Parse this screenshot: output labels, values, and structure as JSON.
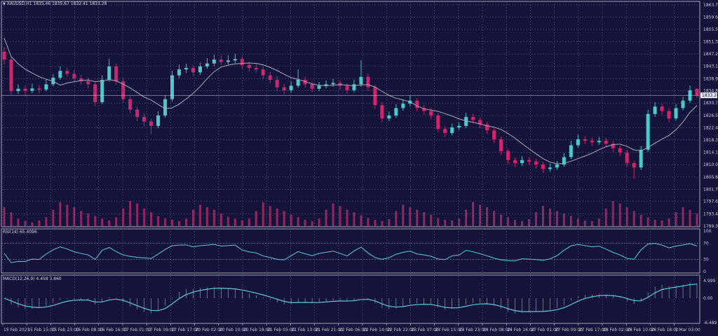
{
  "header": {
    "symbol": "XAUUSD,H1",
    "values": "1835.46 1835.67 1832.41 1833.28"
  },
  "rsi_panel": {
    "label": "RSI(14) 65.4096",
    "axis": [
      "100",
      "70",
      "30",
      "0"
    ]
  },
  "macd_panel": {
    "label": "MACD(12,26,9) 4.458 3.860",
    "axis": [
      "4.999",
      "0.00",
      "-6.489"
    ]
  },
  "colors": {
    "background": "#14143a",
    "bull": "#4ec8cc",
    "bear": "#d0246e",
    "ma": "#a8a8b8",
    "indicator": "#5fc8d8",
    "volume": "#b02a6a",
    "grid": "#4a4a78"
  },
  "chart_data": {
    "type": "candlestick",
    "title": "XAUUSD,H1",
    "current_price": "1833.28",
    "ylim": [
      1789.3,
      1863.7
    ],
    "y_ticks": [
      "1863.70",
      "1859.60",
      "1855.50",
      "1851.30",
      "1847.20",
      "1843.10",
      "1838.90",
      "1834.80",
      "1830.70",
      "1826.50",
      "1822.40",
      "1818.30",
      "1814.10",
      "1810.00",
      "1805.80",
      "1801.70",
      "1797.60",
      "1793.40",
      "1789.30"
    ],
    "x_ticks": [
      "15 Feb 2023",
      "15 Feb 15:00",
      "15 Feb 23:00",
      "16 Feb 08:00",
      "16 Feb 16:00",
      "17 Feb 01:00",
      "17 Feb 09:00",
      "17 Feb 17:00",
      "20 Feb 02:00",
      "20 Feb 10:00",
      "20 Feb 18:00",
      "21 Feb 05:00",
      "21 Feb 13:00",
      "21 Feb 21:00",
      "22 Feb 06:00",
      "22 Feb 14:00",
      "22 Feb 22:00",
      "23 Feb 07:00",
      "23 Feb 15:00",
      "23 Feb 23:00",
      "24 Feb 08:00",
      "24 Feb 16:00",
      "27 Feb 01:00",
      "27 Feb 09:00",
      "27 Feb 17:00",
      "28 Feb 02:00",
      "28 Feb 10:00",
      "28 Feb 18:00",
      "1 Mar 03:00"
    ],
    "candles_ohlc": [
      [
        1848.0,
        1849.5,
        1843.8,
        1845.3
      ],
      [
        1845.3,
        1846.0,
        1833.5,
        1834.7
      ],
      [
        1834.7,
        1837.0,
        1833.8,
        1835.5
      ],
      [
        1835.5,
        1836.5,
        1833.2,
        1834.8
      ],
      [
        1834.8,
        1837.2,
        1834.0,
        1835.6
      ],
      [
        1835.6,
        1836.8,
        1833.9,
        1835.2
      ],
      [
        1835.2,
        1838.5,
        1834.6,
        1837.0
      ],
      [
        1837.0,
        1840.4,
        1836.3,
        1839.2
      ],
      [
        1839.2,
        1843.0,
        1838.5,
        1841.5
      ],
      [
        1841.5,
        1842.6,
        1839.6,
        1840.5
      ],
      [
        1840.5,
        1841.8,
        1837.9,
        1839.0
      ],
      [
        1839.0,
        1840.2,
        1836.8,
        1838.0
      ],
      [
        1838.0,
        1839.3,
        1835.6,
        1837.0
      ],
      [
        1837.0,
        1837.8,
        1829.6,
        1831.0
      ],
      [
        1831.0,
        1840.0,
        1830.4,
        1838.5
      ],
      [
        1838.5,
        1845.6,
        1837.9,
        1843.0
      ],
      [
        1843.0,
        1844.0,
        1836.9,
        1838.0
      ],
      [
        1838.0,
        1839.1,
        1830.8,
        1832.0
      ],
      [
        1832.0,
        1833.0,
        1827.3,
        1828.5
      ],
      [
        1828.5,
        1829.6,
        1824.6,
        1826.0
      ],
      [
        1826.0,
        1827.2,
        1822.8,
        1824.5
      ],
      [
        1824.5,
        1825.4,
        1820.2,
        1823.0
      ],
      [
        1823.0,
        1827.9,
        1822.2,
        1826.5
      ],
      [
        1826.5,
        1833.4,
        1825.8,
        1832.0
      ],
      [
        1832.0,
        1841.5,
        1831.2,
        1840.0
      ],
      [
        1840.0,
        1843.6,
        1839.1,
        1842.0
      ],
      [
        1842.0,
        1843.9,
        1840.8,
        1842.5
      ],
      [
        1842.5,
        1843.4,
        1839.8,
        1841.0
      ],
      [
        1841.0,
        1844.3,
        1840.2,
        1843.0
      ],
      [
        1843.0,
        1845.8,
        1842.2,
        1844.0
      ],
      [
        1844.0,
        1846.9,
        1843.1,
        1845.3
      ],
      [
        1845.3,
        1846.6,
        1843.4,
        1844.5
      ],
      [
        1844.5,
        1846.7,
        1843.6,
        1845.0
      ],
      [
        1845.0,
        1847.3,
        1844.1,
        1845.5
      ],
      [
        1845.5,
        1846.4,
        1842.2,
        1843.5
      ],
      [
        1843.5,
        1844.6,
        1841.3,
        1842.5
      ],
      [
        1842.5,
        1843.9,
        1840.8,
        1842.0
      ],
      [
        1842.0,
        1842.9,
        1838.7,
        1840.0
      ],
      [
        1840.0,
        1841.2,
        1837.3,
        1838.5
      ],
      [
        1838.5,
        1839.7,
        1834.8,
        1836.0
      ],
      [
        1836.0,
        1837.1,
        1833.6,
        1835.0
      ],
      [
        1835.0,
        1838.0,
        1834.1,
        1836.5
      ],
      [
        1836.5,
        1842.0,
        1835.8,
        1838.5
      ],
      [
        1838.5,
        1839.6,
        1835.8,
        1837.0
      ],
      [
        1837.0,
        1837.9,
        1834.3,
        1835.5
      ],
      [
        1835.5,
        1837.8,
        1834.7,
        1836.5
      ],
      [
        1836.5,
        1838.3,
        1835.6,
        1837.0
      ],
      [
        1837.0,
        1838.8,
        1836.1,
        1837.5
      ],
      [
        1837.5,
        1838.4,
        1835.2,
        1836.5
      ],
      [
        1836.5,
        1837.3,
        1833.8,
        1835.0
      ],
      [
        1835.0,
        1838.6,
        1834.2,
        1837.0
      ],
      [
        1837.0,
        1845.0,
        1836.1,
        1839.5
      ],
      [
        1839.5,
        1840.6,
        1834.7,
        1836.0
      ],
      [
        1836.0,
        1836.9,
        1828.6,
        1830.0
      ],
      [
        1830.0,
        1831.0,
        1824.3,
        1825.5
      ],
      [
        1825.5,
        1827.8,
        1824.6,
        1826.5
      ],
      [
        1826.5,
        1830.3,
        1825.7,
        1829.0
      ],
      [
        1829.0,
        1831.9,
        1828.1,
        1830.5
      ],
      [
        1830.5,
        1833.2,
        1829.6,
        1831.5
      ],
      [
        1831.5,
        1832.4,
        1827.8,
        1829.0
      ],
      [
        1829.0,
        1830.1,
        1826.7,
        1828.0
      ],
      [
        1828.0,
        1829.1,
        1825.2,
        1826.5
      ],
      [
        1826.5,
        1827.3,
        1820.8,
        1822.0
      ],
      [
        1822.0,
        1822.9,
        1819.3,
        1820.6
      ],
      [
        1820.6,
        1823.8,
        1819.8,
        1822.5
      ],
      [
        1822.5,
        1824.2,
        1821.6,
        1823.0
      ],
      [
        1823.0,
        1827.4,
        1822.3,
        1826.0
      ],
      [
        1826.0,
        1827.0,
        1823.8,
        1825.0
      ],
      [
        1825.0,
        1825.9,
        1822.3,
        1823.5
      ],
      [
        1823.5,
        1824.4,
        1820.3,
        1821.5
      ],
      [
        1821.5,
        1822.3,
        1817.3,
        1818.5
      ],
      [
        1818.5,
        1819.4,
        1813.2,
        1814.5
      ],
      [
        1814.5,
        1815.3,
        1810.3,
        1811.5
      ],
      [
        1811.5,
        1812.4,
        1809.2,
        1810.5
      ],
      [
        1810.5,
        1812.8,
        1809.6,
        1811.5
      ],
      [
        1811.5,
        1812.5,
        1809.8,
        1811.0
      ],
      [
        1811.0,
        1811.9,
        1808.7,
        1810.0
      ],
      [
        1810.0,
        1810.9,
        1807.2,
        1808.5
      ],
      [
        1808.5,
        1810.3,
        1807.6,
        1809.0
      ],
      [
        1809.0,
        1811.2,
        1808.2,
        1810.0
      ],
      [
        1810.0,
        1813.8,
        1809.3,
        1812.5
      ],
      [
        1812.5,
        1818.0,
        1811.8,
        1816.5
      ],
      [
        1816.5,
        1820.1,
        1815.7,
        1818.5
      ],
      [
        1818.5,
        1819.5,
        1816.9,
        1818.0
      ],
      [
        1818.0,
        1819.0,
        1816.3,
        1817.5
      ],
      [
        1817.5,
        1819.3,
        1816.6,
        1818.0
      ],
      [
        1818.0,
        1819.0,
        1815.8,
        1817.0
      ],
      [
        1817.0,
        1817.9,
        1814.3,
        1815.5
      ],
      [
        1815.5,
        1816.4,
        1812.7,
        1814.0
      ],
      [
        1814.0,
        1814.9,
        1809.3,
        1810.5
      ],
      [
        1810.5,
        1811.3,
        1805.2,
        1809.0
      ],
      [
        1809.0,
        1816.3,
        1808.2,
        1815.0
      ],
      [
        1815.0,
        1828.4,
        1814.3,
        1827.0
      ],
      [
        1827.0,
        1831.0,
        1826.1,
        1829.5
      ],
      [
        1829.5,
        1830.6,
        1826.7,
        1828.0
      ],
      [
        1828.0,
        1829.0,
        1824.2,
        1825.5
      ],
      [
        1825.5,
        1830.3,
        1824.7,
        1829.0
      ],
      [
        1829.0,
        1832.8,
        1828.2,
        1831.5
      ],
      [
        1831.5,
        1836.6,
        1830.7,
        1835.0
      ],
      [
        1835.46,
        1835.67,
        1832.41,
        1833.28
      ]
    ],
    "volume": [
      30,
      22,
      12,
      8,
      6,
      9,
      14,
      26,
      38,
      34,
      30,
      24,
      20,
      16,
      12,
      9,
      14,
      28,
      40,
      36,
      28,
      22,
      16,
      12,
      10,
      8,
      12,
      26,
      34,
      30,
      26,
      20,
      15,
      12,
      9,
      12,
      24,
      38,
      32,
      28,
      24,
      18,
      14,
      10,
      8,
      12,
      26,
      36,
      32,
      26,
      22,
      17,
      13,
      10,
      8,
      11,
      24,
      34,
      30,
      26,
      22,
      18,
      13,
      10,
      9,
      12,
      26,
      38,
      34,
      30,
      24,
      18,
      14,
      10,
      8,
      11,
      22,
      32,
      28,
      24,
      20,
      16,
      12,
      9,
      8,
      12,
      28,
      40,
      36,
      30,
      24,
      18,
      14,
      10,
      9,
      12,
      22,
      30,
      26,
      20
    ]
  }
}
